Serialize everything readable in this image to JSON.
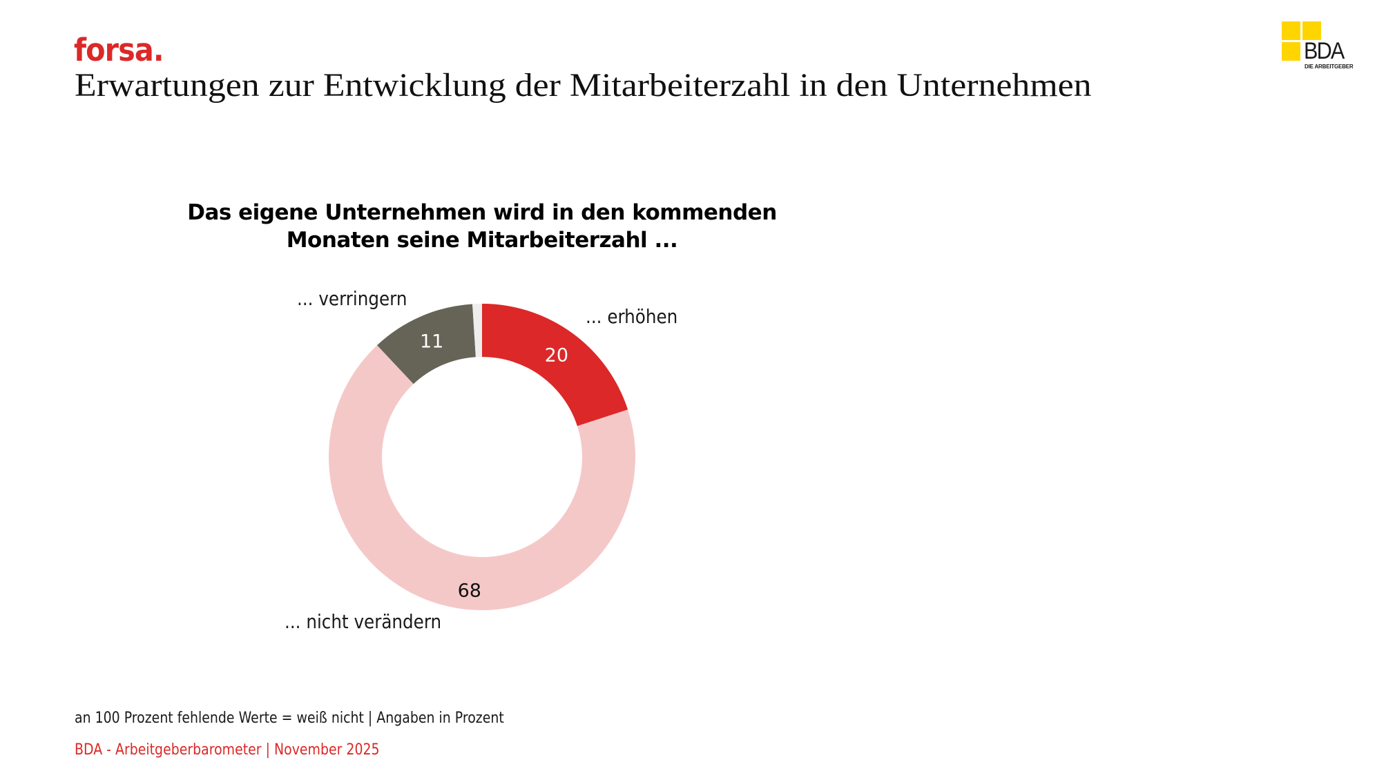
{
  "header": {
    "brand": "forsa.",
    "title": "Erwartungen zur Entwicklung der Mitarbeiterzahl in den Unternehmen"
  },
  "logo": {
    "name": "BDA",
    "tagline": "DIE ARBEITGEBER",
    "color": "#FFD500"
  },
  "chart_data": {
    "type": "pie",
    "variant": "donut",
    "title": "Das eigene Unternehmen wird in den kommenden Monaten seine Mitarbeiterzahl ...",
    "title_lines": [
      "Das eigene Unternehmen wird in den kommenden",
      "Monaten seine Mitarbeiterzahl ..."
    ],
    "unit": "Prozent",
    "start": "top",
    "direction": "clockwise",
    "slices": [
      {
        "label": "... erhöhen",
        "value": 20,
        "value_label": "20",
        "color": "#DC2828",
        "value_text_color": "#ffffff"
      },
      {
        "label": "... nicht verändern",
        "value": 68,
        "value_label": "68",
        "color": "#F5C8C8",
        "value_text_color": "#111111"
      },
      {
        "label": "... verringern",
        "value": 11,
        "value_label": "11",
        "color": "#666456",
        "value_text_color": "#ffffff"
      },
      {
        "label": "weiß nicht",
        "value": 1,
        "value_label": "",
        "color": "#EEEEEC",
        "value_text_color": "#111111",
        "unlabeled": true
      }
    ]
  },
  "footer": {
    "note": "an 100 Prozent fehlende Werte = weiß nicht | Angaben in Prozent",
    "source": "BDA - Arbeitgeberbarometer | November 2025"
  }
}
